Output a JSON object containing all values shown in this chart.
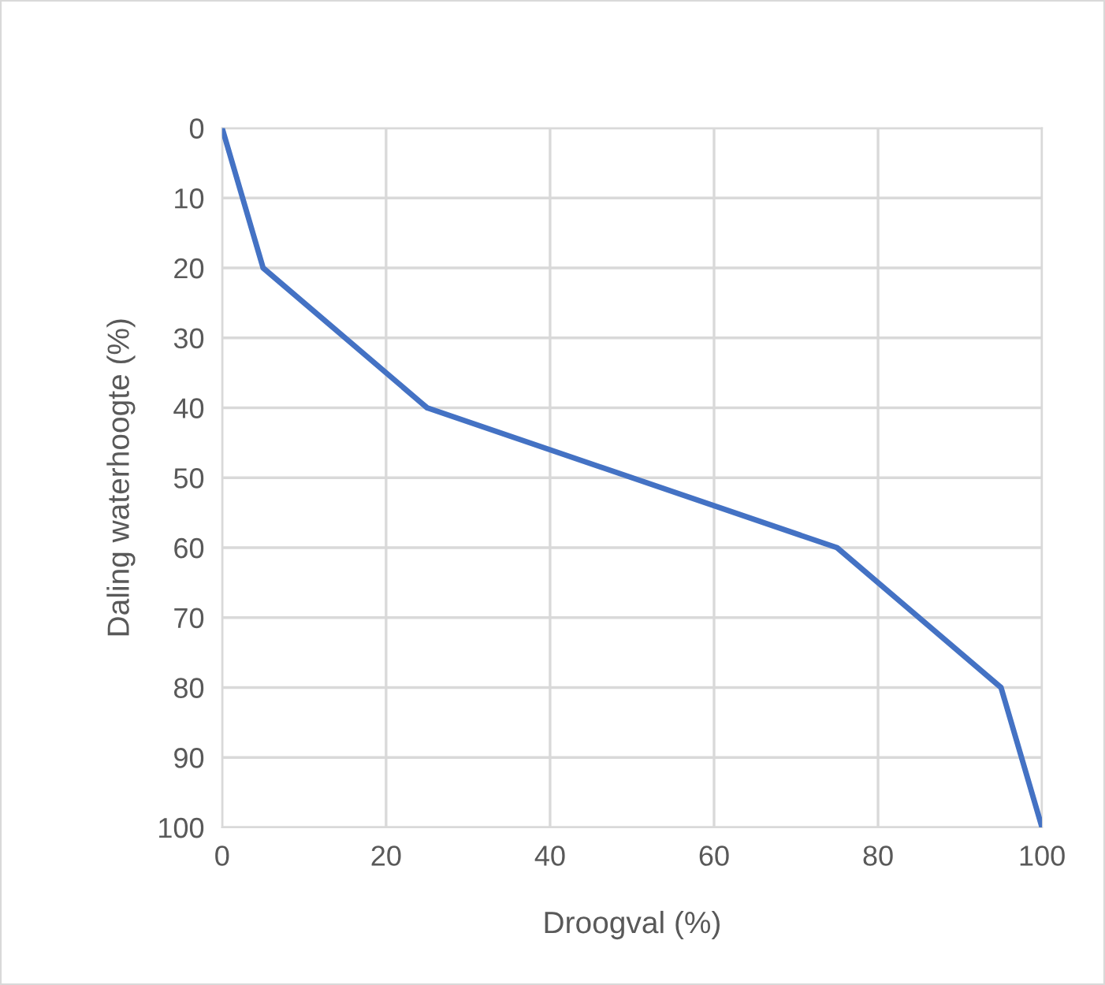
{
  "chart_data": {
    "type": "line",
    "xlabel": "Droogval (%)",
    "ylabel": "Daling waterhoogte (%)",
    "x": [
      0,
      5,
      25,
      50,
      75,
      95,
      100
    ],
    "series": [
      {
        "color": "#4472c4",
        "values": [
          0,
          20,
          40,
          50,
          60,
          80,
          100
        ]
      }
    ],
    "xlim": [
      0,
      100
    ],
    "xticks": [
      0,
      20,
      40,
      60,
      80,
      100
    ],
    "ylim": [
      100,
      0
    ],
    "yticks": [
      0,
      10,
      20,
      30,
      40,
      50,
      60,
      70,
      80,
      90,
      100
    ],
    "grid": true,
    "marker": "none",
    "line_style": "solid"
  }
}
